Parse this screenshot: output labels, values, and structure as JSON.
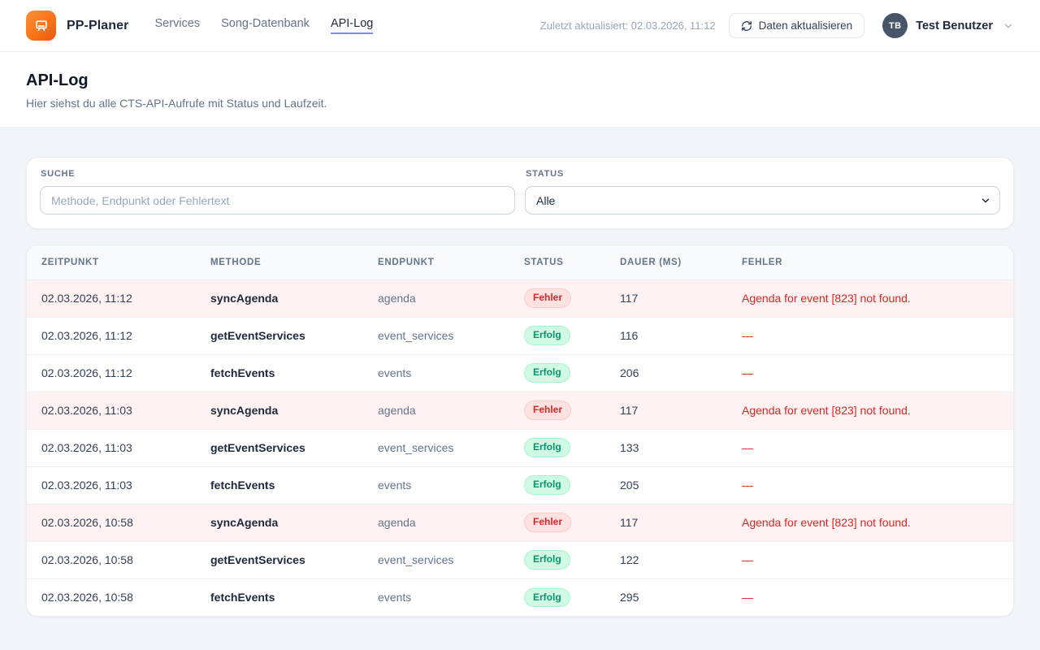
{
  "header": {
    "brand": "PP-Planer",
    "nav": [
      {
        "label": "Services",
        "active": false
      },
      {
        "label": "Song-Datenbank",
        "active": false
      },
      {
        "label": "API-Log",
        "active": true
      }
    ],
    "last_updated": "Zuletzt aktualisiert: 02.03.2026, 11:12",
    "refresh_label": "Daten aktualisieren",
    "user": {
      "initials": "TB",
      "name": "Test Benutzer"
    }
  },
  "page": {
    "title": "API-Log",
    "subtitle": "Hier siehst du alle CTS-API-Aufrufe mit Status und Laufzeit."
  },
  "filters": {
    "search": {
      "label": "SUCHE",
      "placeholder": "Methode, Endpunkt oder Fehlertext",
      "value": ""
    },
    "status": {
      "label": "STATUS",
      "selected": "Alle"
    }
  },
  "table": {
    "columns": [
      "ZEITPUNKT",
      "METHODE",
      "ENDPUNKT",
      "STATUS",
      "DAUER (MS)",
      "FEHLER"
    ],
    "statuses": {
      "error": "Fehler",
      "success": "Erfolg"
    },
    "rows": [
      {
        "zeitpunkt": "02.03.2026, 11:12",
        "methode": "syncAgenda",
        "endpunkt": "agenda",
        "status": "Fehler",
        "dauer": "117",
        "fehler": "Agenda for event [823] not found."
      },
      {
        "zeitpunkt": "02.03.2026, 11:12",
        "methode": "getEventServices",
        "endpunkt": "event_services",
        "status": "Erfolg",
        "dauer": "116",
        "fehler": "—"
      },
      {
        "zeitpunkt": "02.03.2026, 11:12",
        "methode": "fetchEvents",
        "endpunkt": "events",
        "status": "Erfolg",
        "dauer": "206",
        "fehler": "—"
      },
      {
        "zeitpunkt": "02.03.2026, 11:03",
        "methode": "syncAgenda",
        "endpunkt": "agenda",
        "status": "Fehler",
        "dauer": "117",
        "fehler": "Agenda for event [823] not found."
      },
      {
        "zeitpunkt": "02.03.2026, 11:03",
        "methode": "getEventServices",
        "endpunkt": "event_services",
        "status": "Erfolg",
        "dauer": "133",
        "fehler": "—"
      },
      {
        "zeitpunkt": "02.03.2026, 11:03",
        "methode": "fetchEvents",
        "endpunkt": "events",
        "status": "Erfolg",
        "dauer": "205",
        "fehler": "—"
      },
      {
        "zeitpunkt": "02.03.2026, 10:58",
        "methode": "syncAgenda",
        "endpunkt": "agenda",
        "status": "Fehler",
        "dauer": "117",
        "fehler": "Agenda for event [823] not found."
      },
      {
        "zeitpunkt": "02.03.2026, 10:58",
        "methode": "getEventServices",
        "endpunkt": "event_services",
        "status": "Erfolg",
        "dauer": "122",
        "fehler": "—"
      },
      {
        "zeitpunkt": "02.03.2026, 10:58",
        "methode": "fetchEvents",
        "endpunkt": "events",
        "status": "Erfolg",
        "dauer": "295",
        "fehler": "—"
      }
    ]
  },
  "colors": {
    "brand_orange": "#f97316",
    "active_tab_underline": "#818cf8",
    "error_text": "#dc2626",
    "error_badge_bg": "#fee2e2",
    "error_row_bg": "#fef2f2",
    "success_text": "#059669",
    "success_badge_bg": "#d1fae5",
    "page_bg": "#f1f5f9"
  }
}
